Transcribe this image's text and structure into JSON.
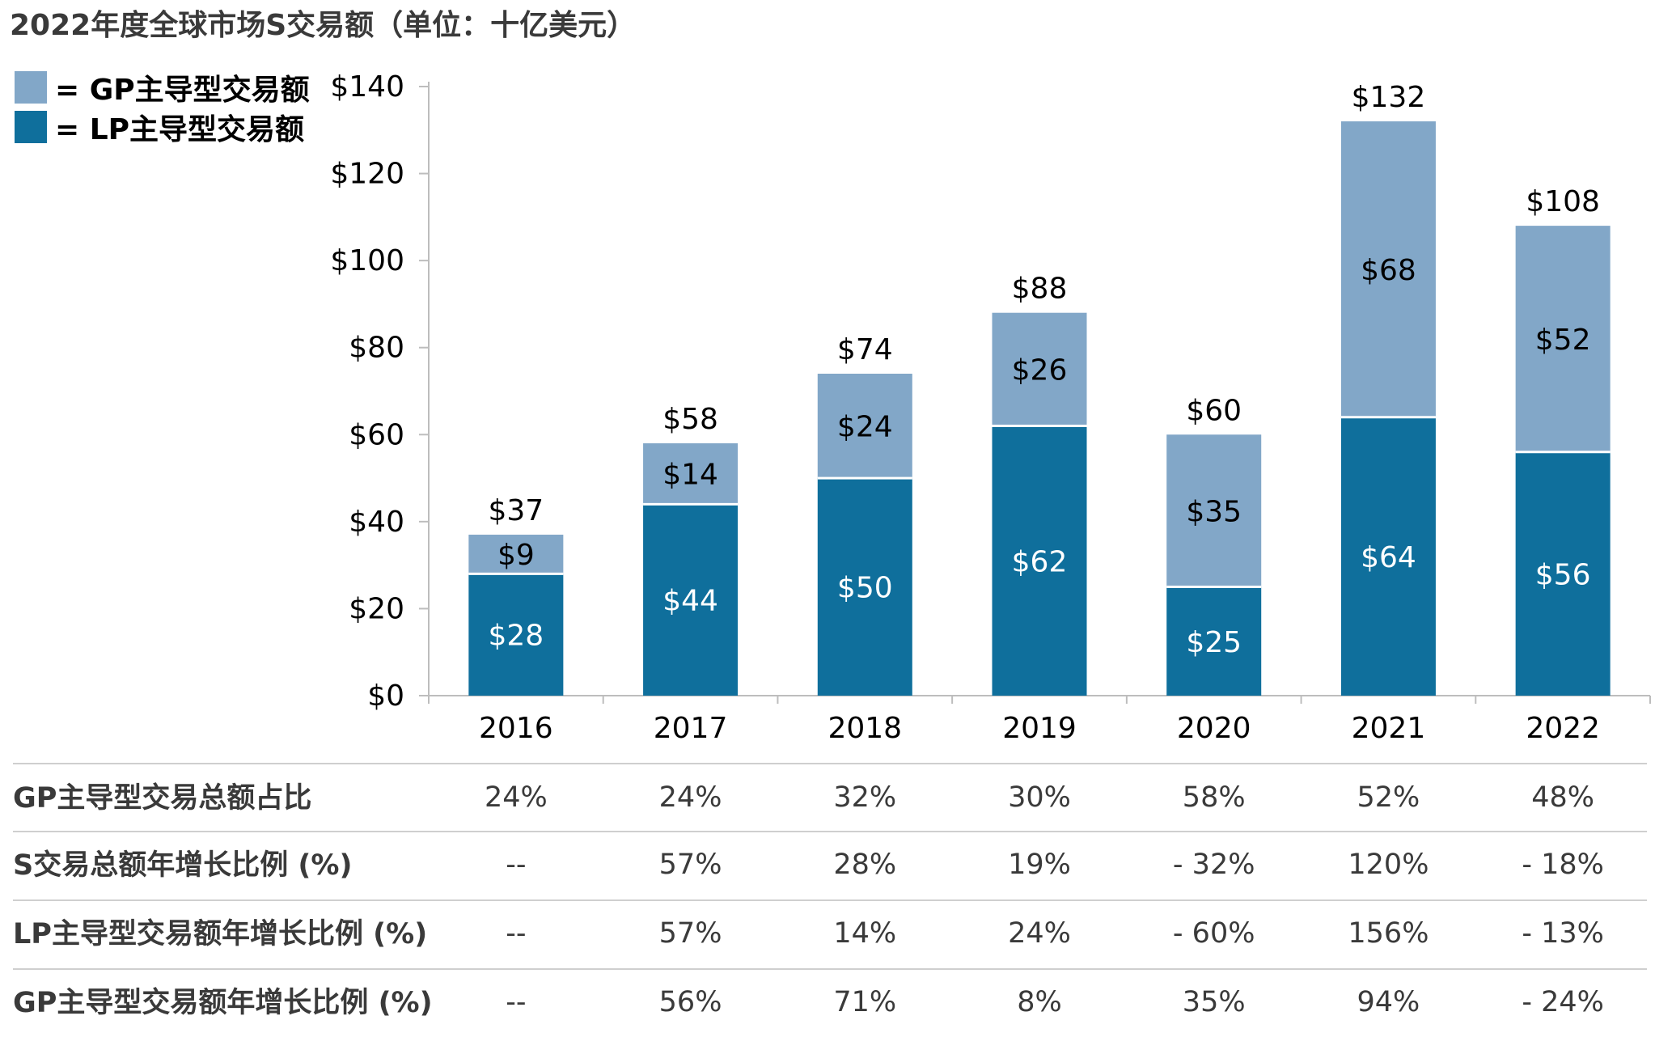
{
  "title": "2022年度全球市场S交易额（单位：十亿美元）",
  "colors": {
    "gp": "#82a7c8",
    "lp": "#0f6f9c",
    "axis": "#bdbdbd",
    "rule": "#cfcfcf"
  },
  "legend": {
    "gp_label": "= GP主导型交易额",
    "lp_label": "= LP主导型交易额"
  },
  "chart_data": {
    "type": "bar",
    "stacked": true,
    "categories": [
      "2016",
      "2017",
      "2018",
      "2019",
      "2020",
      "2021",
      "2022"
    ],
    "series": [
      {
        "name": "LP主导型交易额",
        "values": [
          28,
          44,
          50,
          62,
          25,
          64,
          56
        ],
        "labels": [
          "$28",
          "$44",
          "$50",
          "$62",
          "$25",
          "$64",
          "$56"
        ]
      },
      {
        "name": "GP主导型交易额",
        "values": [
          9,
          14,
          24,
          26,
          35,
          68,
          52
        ],
        "labels": [
          "$9",
          "$14",
          "$24",
          "$26",
          "$35",
          "$68",
          "$52"
        ]
      }
    ],
    "totals": [
      37,
      58,
      74,
      88,
      60,
      132,
      108
    ],
    "total_labels": [
      "$37",
      "$58",
      "$74",
      "$88",
      "$60",
      "$132",
      "$108"
    ],
    "ylim": [
      0,
      140
    ],
    "yticks": [
      0,
      20,
      40,
      60,
      80,
      100,
      120,
      140
    ],
    "ytick_labels": [
      "$0",
      "$20",
      "$40",
      "$60",
      "$80",
      "$100",
      "$120",
      "$140"
    ],
    "legend_position": "top-left",
    "grid": false
  },
  "table": {
    "rows": [
      {
        "label": "GP主导型交易总额占比",
        "values": [
          "24%",
          "24%",
          "32%",
          "30%",
          "58%",
          "52%",
          "48%"
        ]
      },
      {
        "label": "S交易总额年增长比例 (%)",
        "values": [
          "--",
          "57%",
          "28%",
          "19%",
          "- 32%",
          "120%",
          "- 18%"
        ]
      },
      {
        "label": "LP主导型交易额年增长比例 (%)",
        "values": [
          "--",
          "57%",
          "14%",
          "24%",
          "- 60%",
          "156%",
          "- 13%"
        ]
      },
      {
        "label": "GP主导型交易额年增长比例 (%)",
        "values": [
          "--",
          "56%",
          "71%",
          "8%",
          "35%",
          "94%",
          "- 24%"
        ]
      }
    ]
  }
}
